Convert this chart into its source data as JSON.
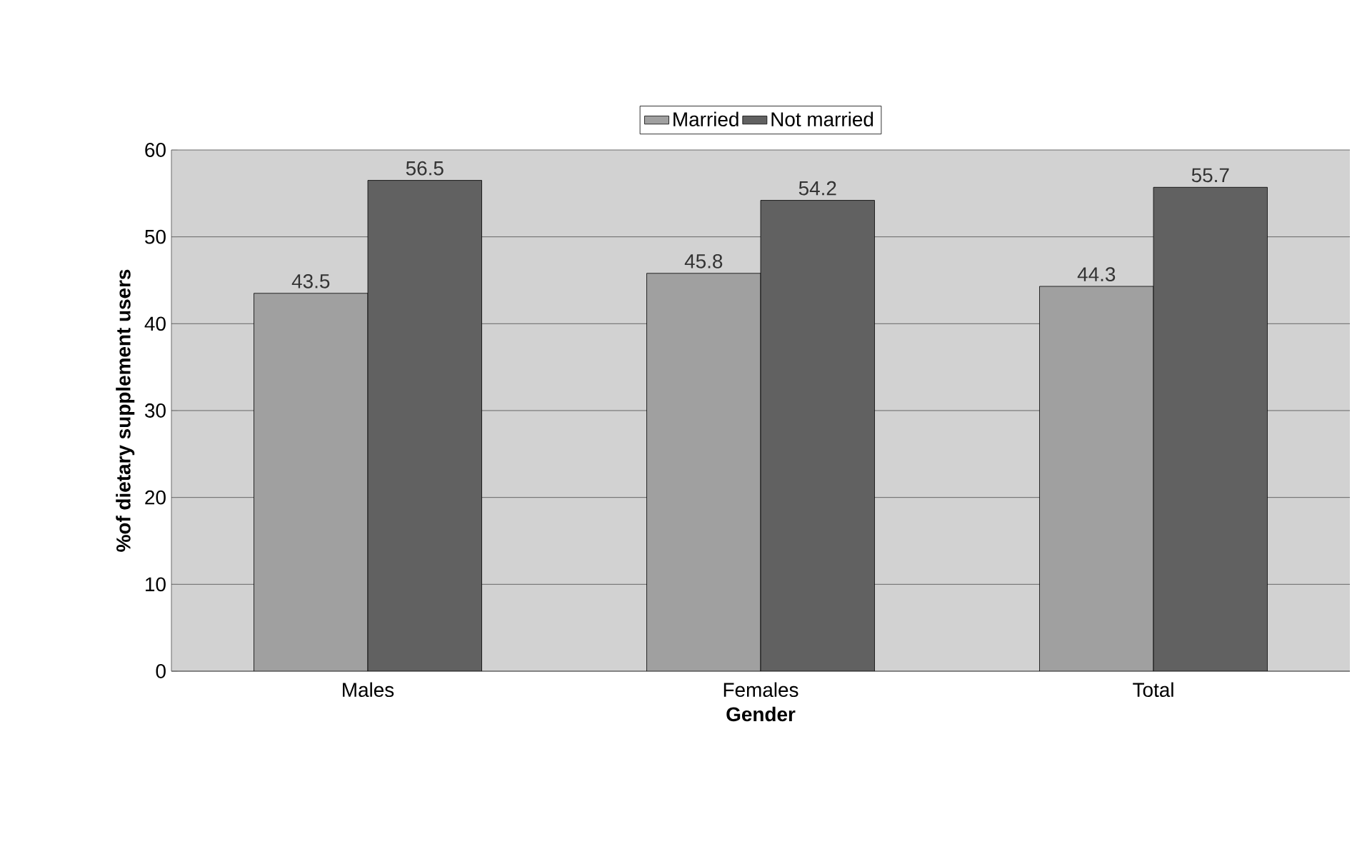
{
  "chart_data": {
    "type": "bar",
    "xlabel": "Gender",
    "ylabel": "%of dietary supplement users",
    "categories": [
      "Males",
      "Females",
      "Total"
    ],
    "series": [
      {
        "name": "Married",
        "color": "#a0a0a0",
        "values": [
          43.5,
          45.8,
          44.3
        ]
      },
      {
        "name": "Not married",
        "color": "#616161",
        "values": [
          56.5,
          54.2,
          55.7
        ]
      }
    ],
    "ylim": [
      0,
      60
    ],
    "yticks": [
      0,
      10,
      20,
      30,
      40,
      50,
      60
    ],
    "grid": "y",
    "legend": "top",
    "data_labels": true
  }
}
